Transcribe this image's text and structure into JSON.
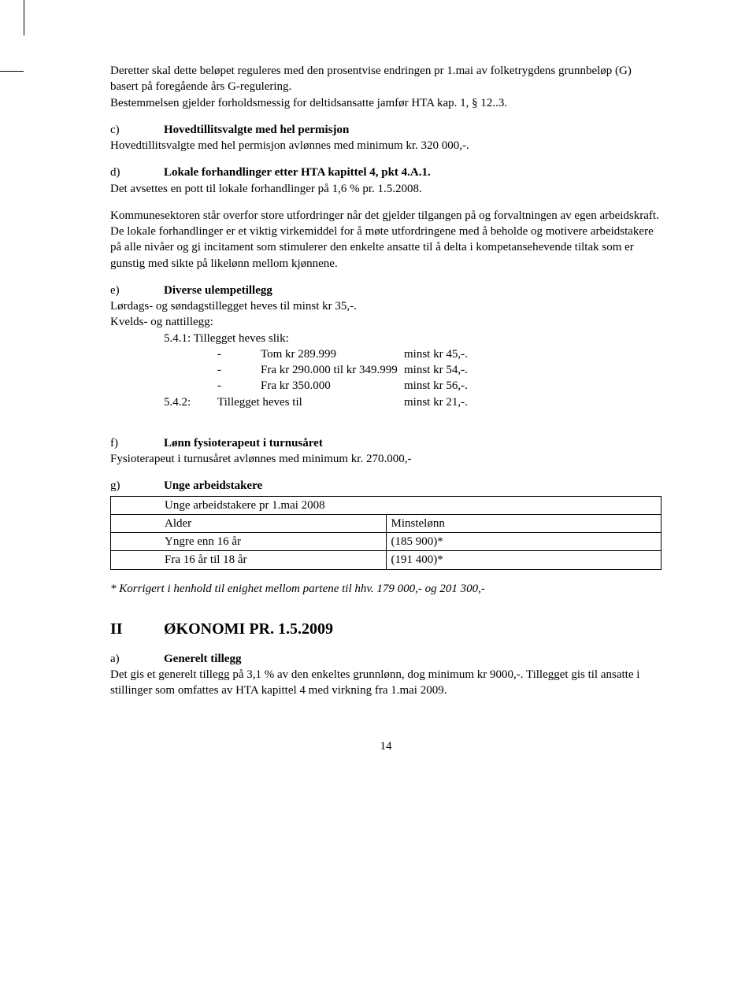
{
  "intro": {
    "p1": "Deretter skal dette beløpet reguleres med den prosentvise endringen pr 1.mai av folketrygdens grunnbeløp (G) basert på foregående års G-regulering.",
    "p2": "Bestemmelsen gjelder forholdsmessig for deltidsansatte jamfør HTA kap. 1, § 12..3."
  },
  "c": {
    "label": "c)",
    "title": "Hovedtillitsvalgte med hel permisjon",
    "body": "Hovedtillitsvalgte med hel permisjon avlønnes med minimum kr. 320 000,-."
  },
  "d": {
    "label": "d)",
    "title": "Lokale forhandlinger etter HTA kapittel 4, pkt 4.A.1.",
    "body": "Det avsettes en pott til lokale forhandlinger på 1,6 % pr. 1.5.2008.",
    "p2": "Kommunesektoren står overfor store utfordringer når det gjelder tilgangen på og forvaltningen av egen arbeidskraft.",
    "p3": "De lokale forhandlinger er et viktig virkemiddel for å møte utfordringene med å beholde og motivere arbeidstakere på alle nivåer og gi incitament som stimulerer den enkelte ansatte til å delta i kompetansehevende tiltak som er gunstig med sikte på likelønn mellom kjønnene."
  },
  "e": {
    "label": "e)",
    "title": "Diverse ulempetillegg",
    "line1": "Lørdags- og søndagstillegget heves til minst kr 35,-.",
    "line2": "Kvelds- og nattillegg:",
    "line3": "5.4.1: Tillegget heves slik:",
    "rows": [
      {
        "dash": "-",
        "left": "Tom kr 289.999",
        "right": "minst kr 45,-."
      },
      {
        "dash": "-",
        "left": "Fra kr 290.000 til kr 349.999",
        "right": "minst kr 54,-."
      },
      {
        "dash": "-",
        "left": "Fra kr 350.000",
        "right": "minst kr 56,-."
      }
    ],
    "line4_pre": "5.4.2:",
    "line4_left": "Tillegget heves til",
    "line4_right": "minst kr 21,-."
  },
  "f": {
    "label": "f)",
    "title": "Lønn fysioterapeut i turnusåret",
    "body": "Fysioterapeut i turnusåret avlønnes med minimum kr. 270.000,-"
  },
  "g": {
    "label": "g)",
    "title": "Unge arbeidstakere",
    "caption": "Unge arbeidstakere pr 1.mai 2008",
    "header": [
      "Alder",
      "Minstelønn"
    ],
    "rows": [
      [
        "Yngre enn 16 år",
        "(185 900)*"
      ],
      [
        "Fra 16 år til 18 år",
        "(191 400)*"
      ]
    ],
    "note": "* Korrigert i henhold til enighet mellom partene til hhv. 179 000,- og 201 300,-"
  },
  "II": {
    "roman": "II",
    "heading": "ØKONOMI PR. 1.5.2009",
    "a": {
      "label": "a)",
      "title": "Generelt tillegg",
      "body": "Det gis et generelt tillegg på 3,1 % av den enkeltes grunnlønn, dog minimum kr 9000,-. Tillegget gis til ansatte i stillinger som omfattes av HTA kapittel 4 med virkning fra 1.mai 2009."
    }
  },
  "page_number": "14"
}
